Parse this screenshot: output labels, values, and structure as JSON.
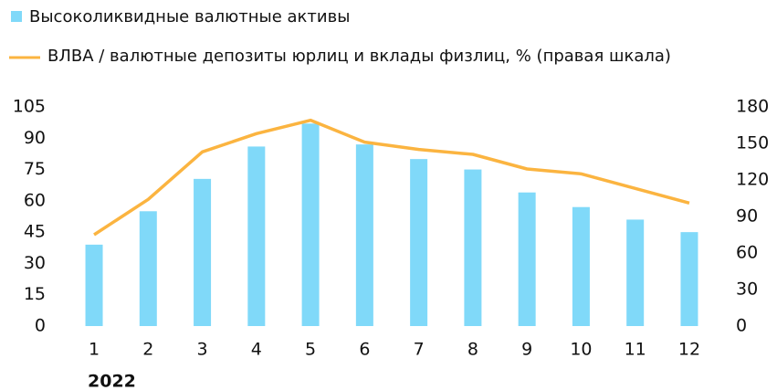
{
  "chart_data": {
    "type": "bar",
    "categories": [
      "1",
      "2",
      "3",
      "4",
      "5",
      "6",
      "7",
      "8",
      "9",
      "10",
      "11",
      "12"
    ],
    "x_group_label": "2022",
    "series": [
      {
        "name": "Высоколиквидные валютные активы",
        "type": "bar",
        "color": "#80d9f9",
        "axis": "y",
        "values": [
          39,
          55,
          70.5,
          86,
          97,
          87,
          80,
          75,
          64,
          57,
          51,
          45
        ]
      },
      {
        "name": "ВЛВА / валютные депозиты юрлиц и вклады физлиц, % (правая шкала)",
        "type": "line",
        "color": "#fbb440",
        "axis": "y2",
        "values": [
          75,
          104,
          143,
          158,
          169,
          151,
          145,
          141,
          129,
          125,
          113,
          101
        ]
      }
    ],
    "ylim": [
      0,
      105
    ],
    "yticks": [
      0,
      15,
      30,
      45,
      60,
      75,
      90,
      105
    ],
    "y2lim": [
      0,
      180
    ],
    "y2ticks": [
      0,
      30,
      60,
      90,
      120,
      150,
      180
    ],
    "grid": false
  }
}
